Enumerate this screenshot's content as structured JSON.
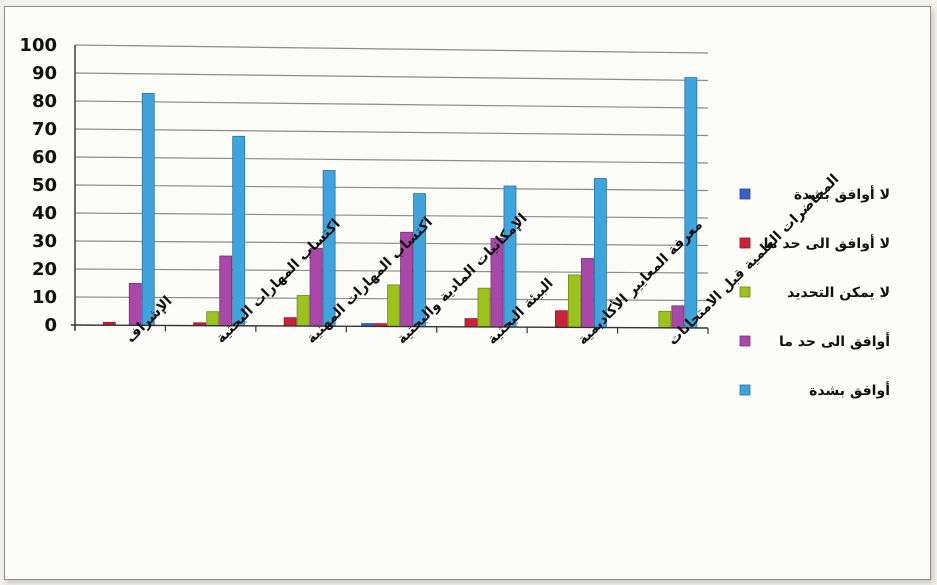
{
  "chart_data": {
    "type": "bar",
    "title": "",
    "xlabel": "",
    "ylabel": "",
    "ylim": [
      0,
      100
    ],
    "yticks": [
      0,
      10,
      20,
      30,
      40,
      50,
      60,
      70,
      80,
      90,
      100
    ],
    "grid": true,
    "legend_position": "right",
    "categories": [
      "الإشراف",
      "اكتساب المهارات البحثية",
      "اكتساب المهارات المهنية",
      "الإمكانيات المادية والبحثية",
      "البيئة البحثية",
      "معرفة المعايير الأكاديمية",
      "المحاضرات العلمية قبل الامتحانات"
    ],
    "series": [
      {
        "name": "لا أوافق بشدة",
        "color": "#3a5fc8",
        "values": [
          0,
          0,
          0,
          1,
          0,
          0,
          0
        ]
      },
      {
        "name": "لا أوافق الى حد ما",
        "color": "#c8233a",
        "values": [
          1,
          1,
          3,
          1,
          3,
          6,
          0
        ]
      },
      {
        "name": "لا يمكن التحديد",
        "color": "#9bc21e",
        "values": [
          0,
          5,
          11,
          15,
          14,
          19,
          6
        ]
      },
      {
        "name": "أوافق الى حد ما",
        "color": "#a948a8",
        "values": [
          15,
          25,
          28,
          34,
          32,
          25,
          8
        ]
      },
      {
        "name": "أوافق بشدة",
        "color": "#3fa4dd",
        "values": [
          83,
          68,
          56,
          48,
          51,
          54,
          91
        ]
      }
    ]
  }
}
